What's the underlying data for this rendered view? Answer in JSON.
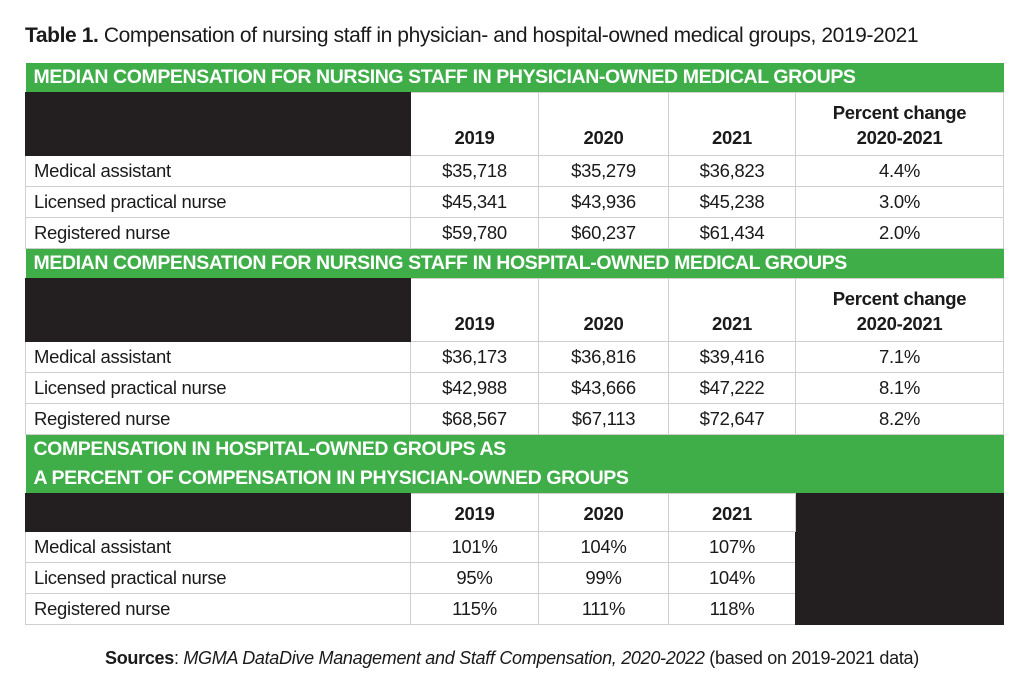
{
  "title": {
    "prefix": "Table 1.",
    "text": " Compensation of nursing staff in physician- and hospital-owned medical groups, 2019-2021"
  },
  "colors": {
    "band_green": "#3fae49",
    "header_black": "#231f20",
    "grid": "#cfcfcf"
  },
  "sections": [
    {
      "heading": [
        "MEDIAN COMPENSATION FOR NURSING STAFF IN PHYSICIAN-OWNED MEDICAL GROUPS"
      ],
      "columns": [
        "2019",
        "2020",
        "2021"
      ],
      "change_header": [
        "Percent change",
        "2020-2021"
      ],
      "rows": [
        {
          "label": "Medical assistant",
          "values": [
            "$35,718",
            "$35,279",
            "$36,823"
          ],
          "change": "4.4%"
        },
        {
          "label": "Licensed practical nurse",
          "values": [
            "$45,341",
            "$43,936",
            "$45,238"
          ],
          "change": "3.0%"
        },
        {
          "label": "Registered nurse",
          "values": [
            "$59,780",
            "$60,237",
            "$61,434"
          ],
          "change": "2.0%"
        }
      ]
    },
    {
      "heading": [
        "MEDIAN COMPENSATION FOR NURSING STAFF IN HOSPITAL-OWNED MEDICAL GROUPS"
      ],
      "columns": [
        "2019",
        "2020",
        "2021"
      ],
      "change_header": [
        "Percent change",
        "2020-2021"
      ],
      "rows": [
        {
          "label": "Medical assistant",
          "values": [
            "$36,173",
            "$36,816",
            "$39,416"
          ],
          "change": "7.1%"
        },
        {
          "label": "Licensed practical nurse",
          "values": [
            "$42,988",
            "$43,666",
            "$47,222"
          ],
          "change": "8.1%"
        },
        {
          "label": "Registered nurse",
          "values": [
            "$68,567",
            "$67,113",
            "$72,647"
          ],
          "change": "8.2%"
        }
      ]
    },
    {
      "heading": [
        "COMPENSATION IN HOSPITAL-OWNED GROUPS AS",
        "A PERCENT OF COMPENSATION IN PHYSICIAN-OWNED GROUPS"
      ],
      "columns": [
        "2019",
        "2020",
        "2021"
      ],
      "rows": [
        {
          "label": "Medical assistant",
          "values": [
            "101%",
            "104%",
            "107%"
          ]
        },
        {
          "label": "Licensed practical nurse",
          "values": [
            "95%",
            "99%",
            "104%"
          ]
        },
        {
          "label": "Registered nurse",
          "values": [
            "115%",
            "111%",
            "118%"
          ]
        }
      ]
    }
  ],
  "sources": {
    "label": "Sources",
    "sep": ": ",
    "citation": "MGMA DataDive Management and Staff Compensation, 2020-2022",
    "note": " (based on 2019-2021 data)"
  }
}
